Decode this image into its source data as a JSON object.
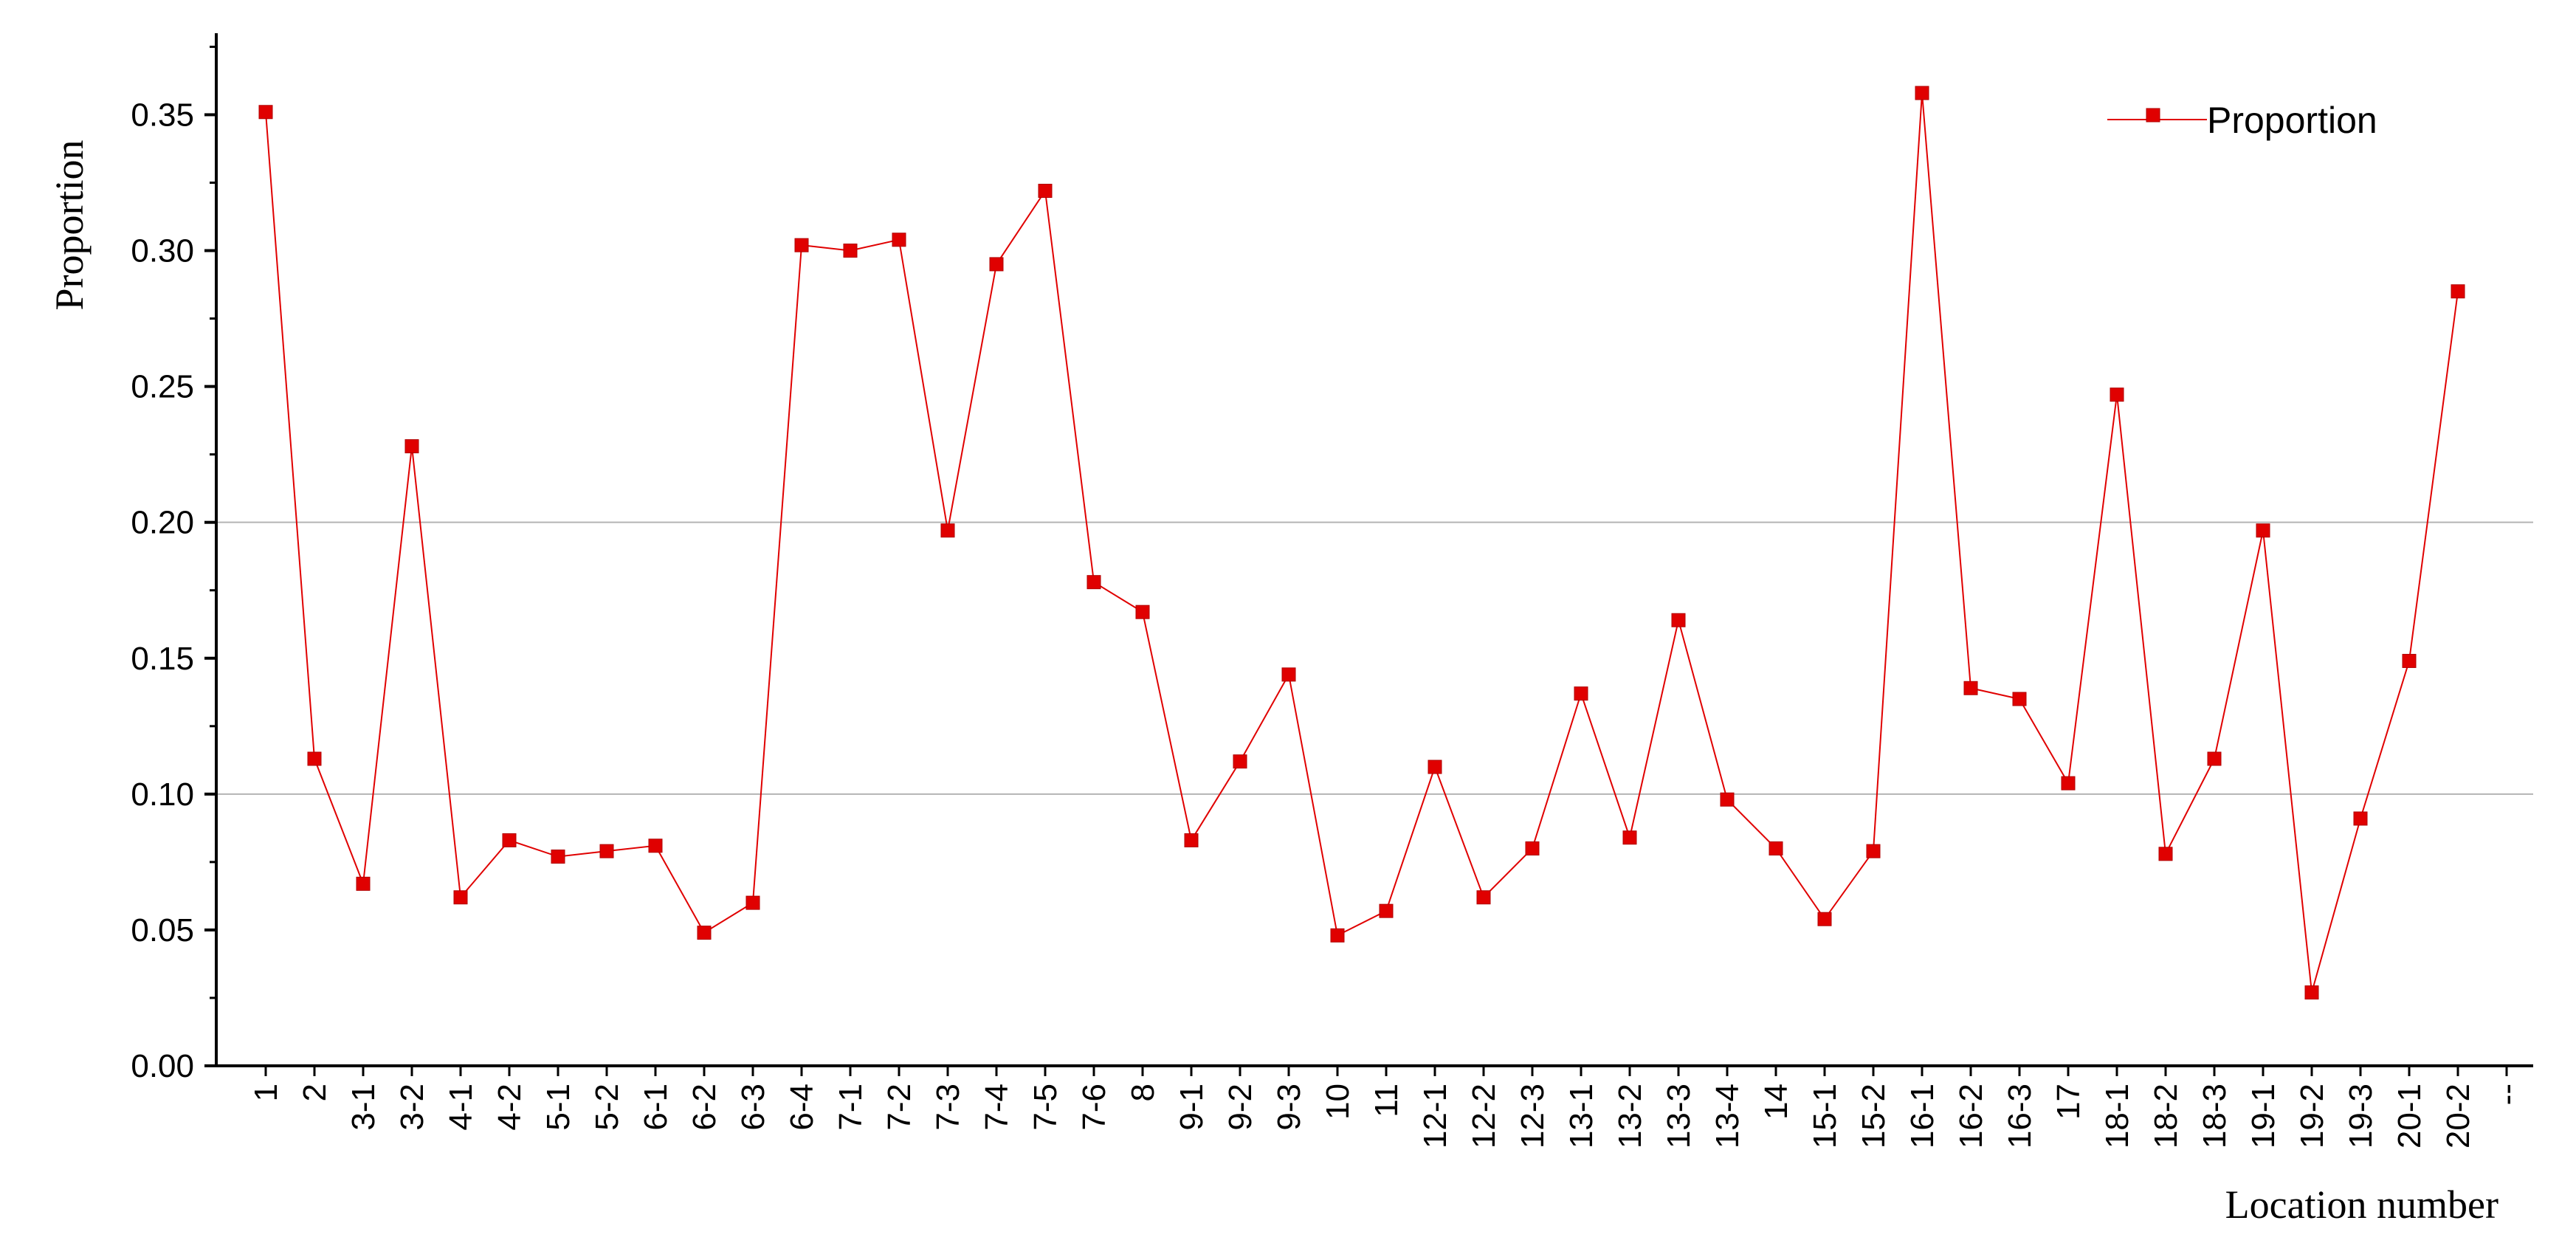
{
  "chart_data": {
    "type": "line",
    "title": "",
    "xlabel": "Location number",
    "ylabel": "Proportion",
    "ylim": [
      0,
      0.38
    ],
    "yticks": [
      "0.00",
      "0.05",
      "0.10",
      "0.15",
      "0.20",
      "0.25",
      "0.30",
      "0.35"
    ],
    "ytick_values": [
      0,
      0.05,
      0.1,
      0.15,
      0.2,
      0.25,
      0.3,
      0.35
    ],
    "grid_lines_y": [
      0.1,
      0.2
    ],
    "legend_position": "top-right",
    "series_color": "#e00000",
    "axis_color": "#000000",
    "grid_color": "#b4b4b4",
    "categories": [
      "1",
      "2",
      "3-1",
      "3-2",
      "4-1",
      "4-2",
      "5-1",
      "5-2",
      "6-1",
      "6-2",
      "6-3",
      "6-4",
      "7-1",
      "7-2",
      "7-3",
      "7-4",
      "7-5",
      "7-6",
      "8",
      "9-1",
      "9-2",
      "9-3",
      "10",
      "11",
      "12-1",
      "12-2",
      "12-3",
      "13-1",
      "13-2",
      "13-3",
      "13-4",
      "14",
      "15-1",
      "15-2",
      "16-1",
      "16-2",
      "16-3",
      "17",
      "18-1",
      "18-2",
      "18-3",
      "19-1",
      "19-2",
      "19-3",
      "20-1",
      "20-2",
      "--"
    ],
    "series": [
      {
        "name": "Proportion",
        "values": [
          0.351,
          0.113,
          0.067,
          0.228,
          0.062,
          0.083,
          0.077,
          0.079,
          0.081,
          0.049,
          0.06,
          0.302,
          0.3,
          0.304,
          0.197,
          0.295,
          0.322,
          0.178,
          0.167,
          0.083,
          0.112,
          0.144,
          0.048,
          0.057,
          0.11,
          0.062,
          0.08,
          0.137,
          0.084,
          0.164,
          0.098,
          0.08,
          0.054,
          0.079,
          0.358,
          0.139,
          0.135,
          0.104,
          0.247,
          0.078,
          0.113,
          0.197,
          0.027,
          0.091,
          0.149,
          0.285,
          null
        ]
      }
    ]
  }
}
